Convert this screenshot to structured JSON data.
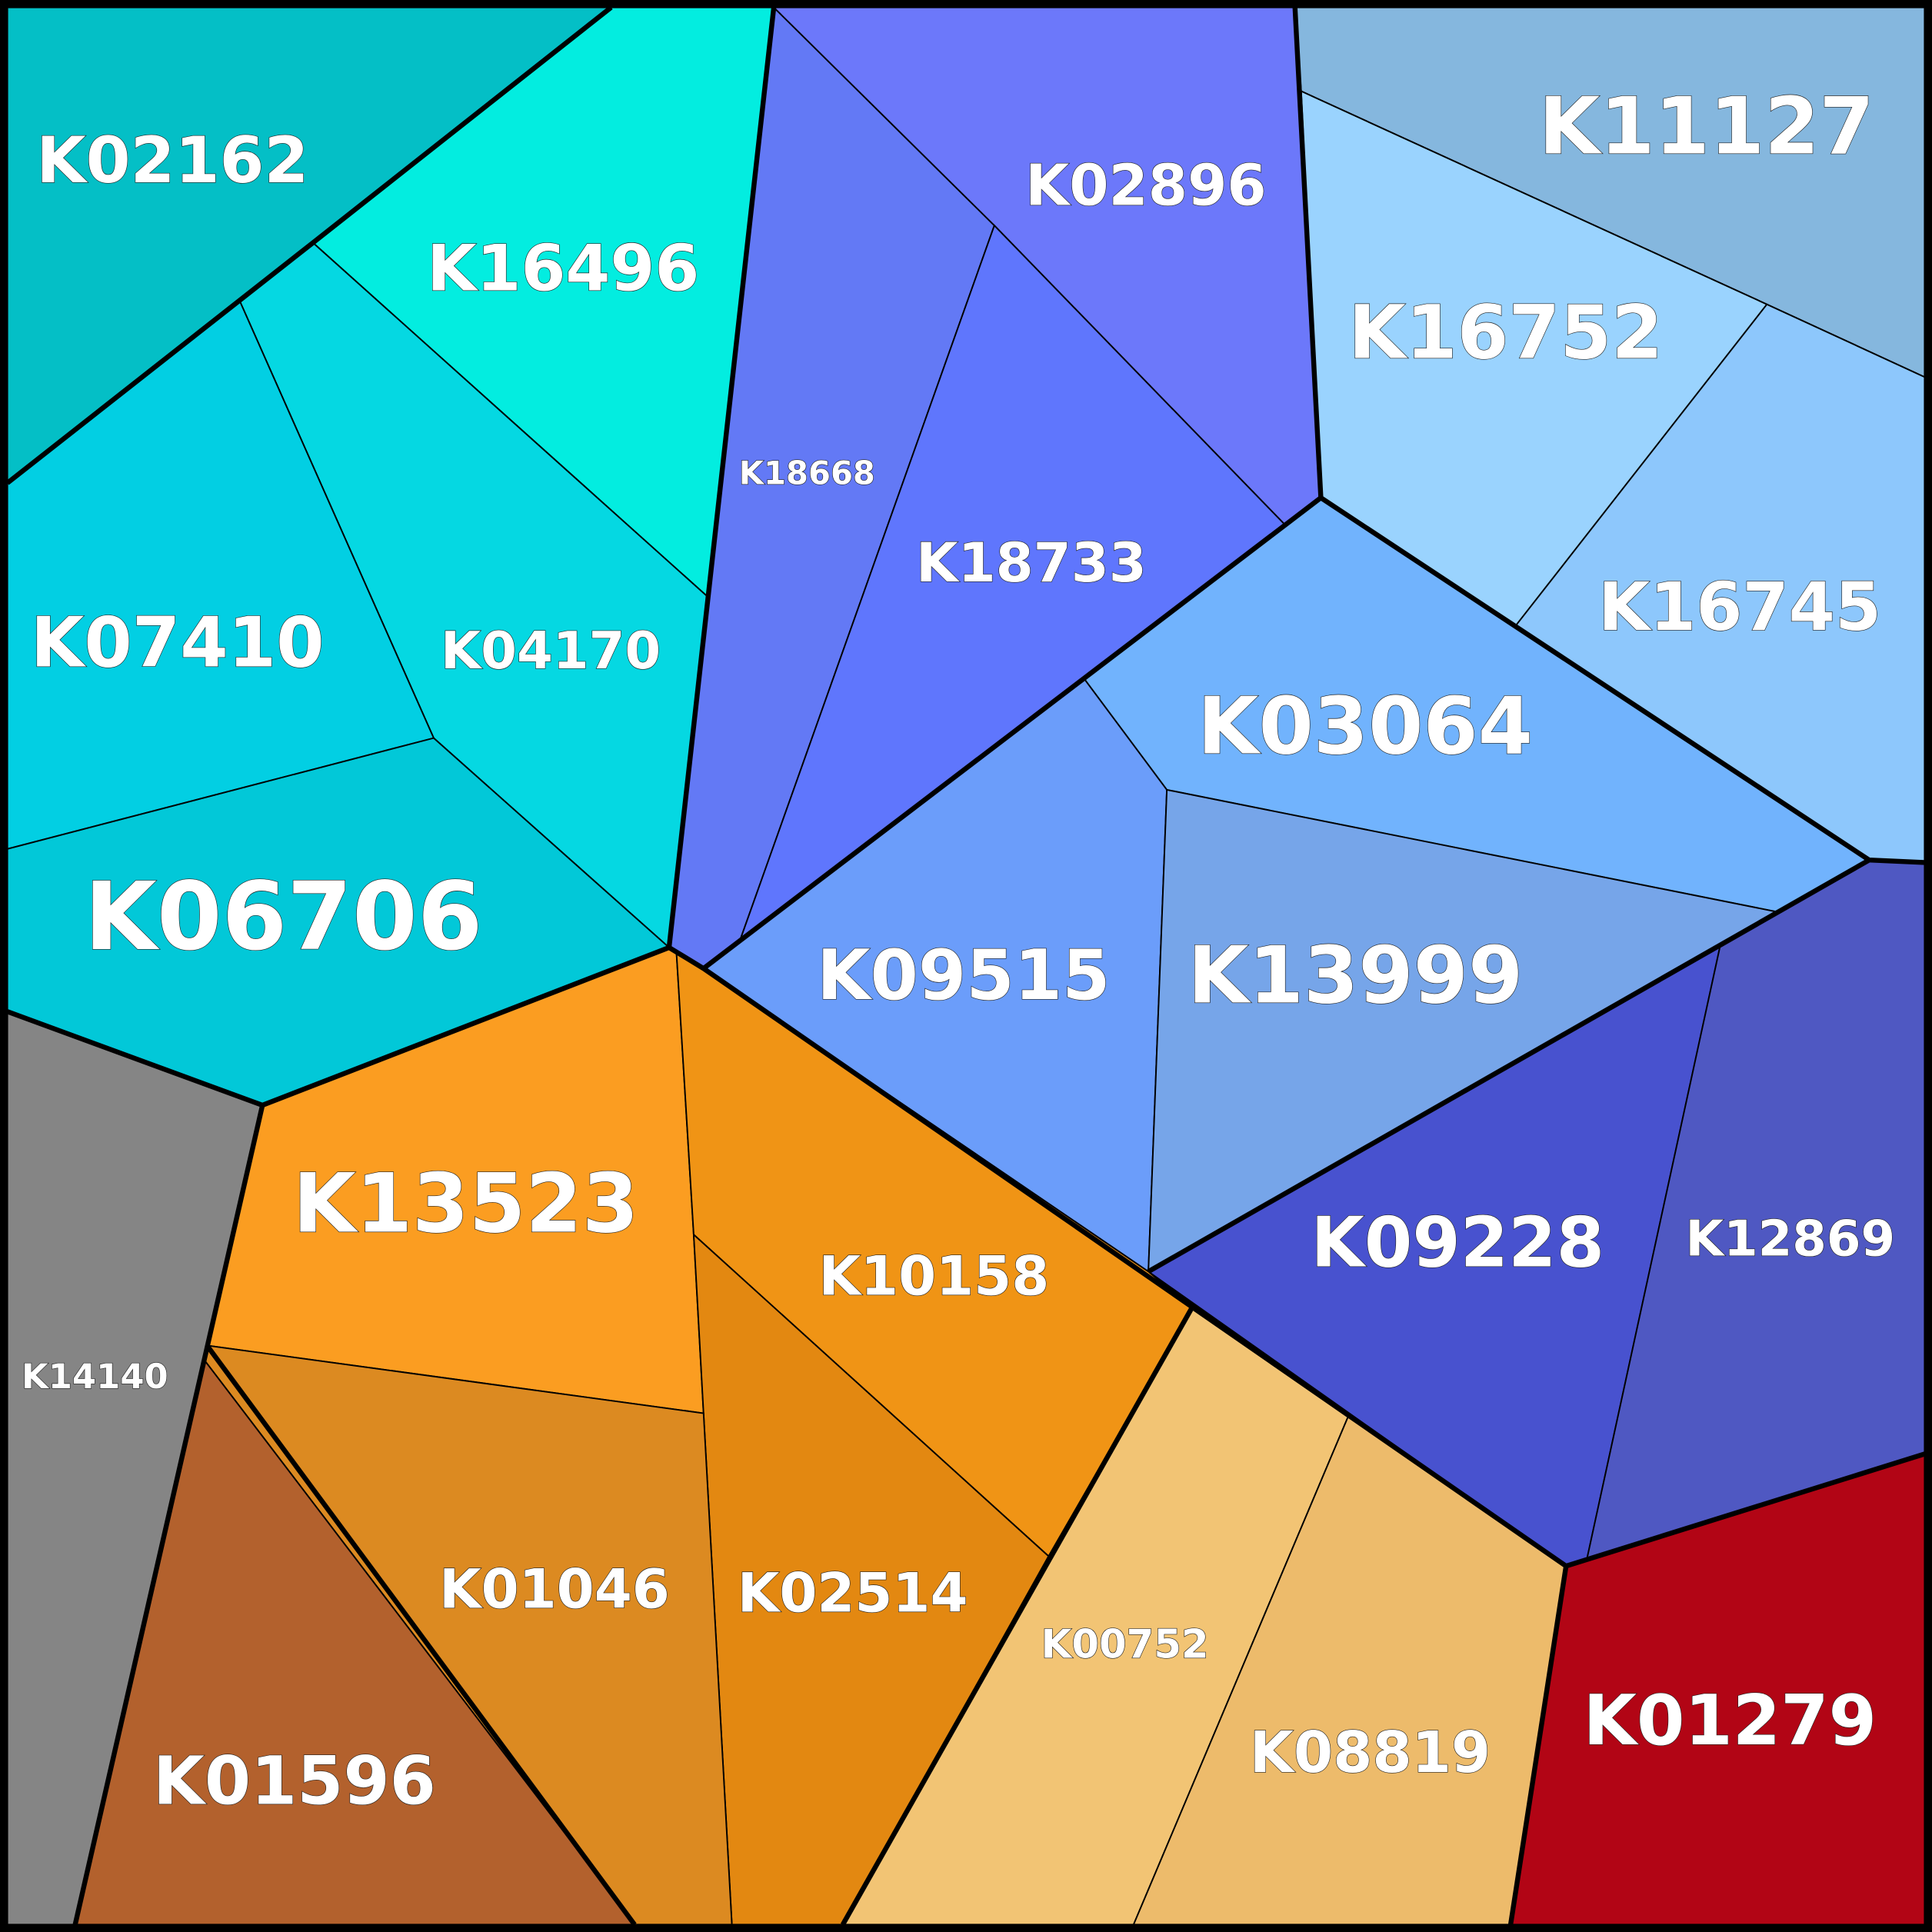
{
  "chart_data": {
    "type": "voronoi-treemap",
    "cells": [
      {
        "label": "K02162",
        "color": "#04bfc6"
      },
      {
        "label": "K16496",
        "color": "#03ede0"
      },
      {
        "label": "K04170",
        "color": "#05d8e2"
      },
      {
        "label": "K07410",
        "color": "#02cfe3"
      },
      {
        "label": "K06706",
        "color": "#02c8d8"
      },
      {
        "label": "K18668",
        "color": "#6379f5"
      },
      {
        "label": "K02896",
        "color": "#6c78fa"
      },
      {
        "label": "K18733",
        "color": "#5f76fd"
      },
      {
        "label": "K11127",
        "color": "#85b7de"
      },
      {
        "label": "K16752",
        "color": "#9ad3fe"
      },
      {
        "label": "K16745",
        "color": "#8dc7fc"
      },
      {
        "label": "K03064",
        "color": "#71b3fd"
      },
      {
        "label": "K09515",
        "color": "#6b9dfa"
      },
      {
        "label": "K13999",
        "color": "#76a5e9"
      },
      {
        "label": "K09228",
        "color": "#4852cf"
      },
      {
        "label": "K12869",
        "color": "#4f58c2"
      },
      {
        "label": "K01279",
        "color": "#b20515"
      },
      {
        "label": "K00752",
        "color": "#f2c474"
      },
      {
        "label": "K08819",
        "color": "#edbb6b"
      },
      {
        "label": "K13523",
        "color": "#fb9d21"
      },
      {
        "label": "K10158",
        "color": "#f09415"
      },
      {
        "label": "K02514",
        "color": "#e38811"
      },
      {
        "label": "K01046",
        "color": "#dc8a21"
      },
      {
        "label": "K01596",
        "color": "#b3612d"
      },
      {
        "label": "K14140",
        "color": "#858585"
      }
    ]
  }
}
